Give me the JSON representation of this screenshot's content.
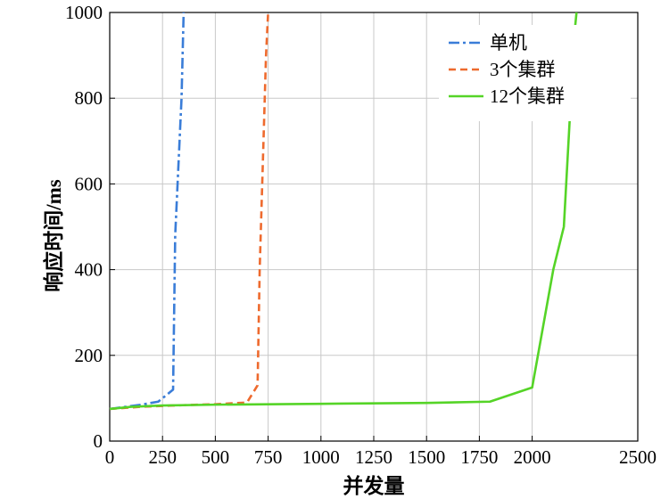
{
  "chart_data": {
    "type": "line",
    "xlabel": "并发量",
    "ylabel": "响应时间/ms",
    "xlim": [
      0,
      2500
    ],
    "ylim": [
      0,
      1000
    ],
    "xticks": [
      0,
      250,
      500,
      750,
      1000,
      1250,
      1500,
      1750,
      2000,
      2500
    ],
    "yticks": [
      0,
      200,
      400,
      600,
      800,
      1000
    ],
    "grid": true,
    "legend_position": "top-right",
    "series": [
      {
        "name": "单机",
        "color": "#3a7dd8",
        "dash": "dashdot",
        "x": [
          0,
          150,
          230,
          300,
          310,
          340,
          350
        ],
        "y": [
          75,
          85,
          92,
          120,
          480,
          800,
          1000
        ]
      },
      {
        "name": "3个集群",
        "color": "#ee6a2e",
        "dash": "dashed",
        "x": [
          0,
          150,
          300,
          500,
          650,
          700,
          710,
          740,
          750
        ],
        "y": [
          75,
          80,
          83,
          86,
          90,
          130,
          400,
          900,
          1000
        ]
      },
      {
        "name": "12个集群",
        "color": "#55d427",
        "dash": "solid",
        "x": [
          0,
          100,
          250,
          500,
          1000,
          1500,
          1800,
          2000,
          2100,
          2150,
          2200,
          2210
        ],
        "y": [
          75,
          80,
          83,
          85,
          87,
          89,
          92,
          125,
          400,
          500,
          950,
          1000
        ]
      }
    ]
  }
}
